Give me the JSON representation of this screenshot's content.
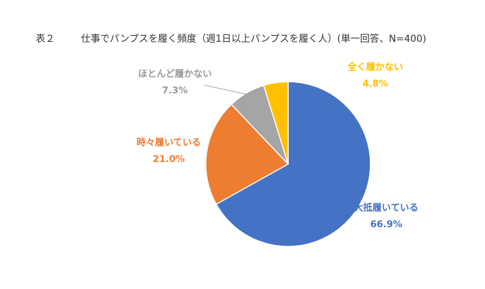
{
  "header": {
    "table_no": "表２",
    "title": "仕事でパンプスを履く頻度（週1日以上パンプスを履く人）(単一回答、N=400)"
  },
  "chart_data": {
    "type": "pie",
    "title": "仕事でパンプスを履く頻度（週1日以上パンプスを履く人）(単一回答、N=400)",
    "slices": [
      {
        "label": "大抵履いている",
        "value": 66.9,
        "value_label": "66.9%",
        "color": "#4472C4"
      },
      {
        "label": "時々履いている",
        "value": 21.0,
        "value_label": "21.0%",
        "color": "#ED7D31"
      },
      {
        "label": "ほとんど履かない",
        "value": 7.3,
        "value_label": "7.3%",
        "color": "#A5A5A5"
      },
      {
        "label": "全く履かない",
        "value": 4.8,
        "value_label": "4.8%",
        "color": "#FFC000"
      }
    ],
    "start_angle": "12 o'clock",
    "direction": "clockwise",
    "legend": "none"
  }
}
